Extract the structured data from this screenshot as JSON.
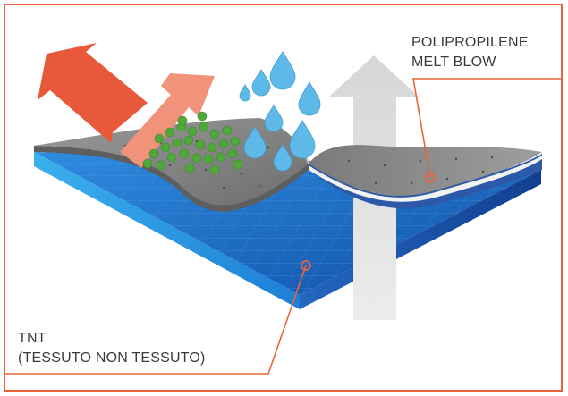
{
  "labels": {
    "polypropylene": {
      "line1": "POLIPROPILENE",
      "line2": "MELT BLOW"
    },
    "tnt": {
      "line1": "TNT",
      "line2": "(TESSUTO NON TESSUTO)"
    }
  },
  "colors": {
    "frame": "#e8643c",
    "leader": "#e8643c",
    "top_layer": "#8f8f8f",
    "blue_layer": "#1f6fc0",
    "outward_arrow": "#e8583a",
    "inward_arrow": "#f0937a",
    "vapor_arrow": "#e3e3e3",
    "particles": "#4fa83a",
    "droplets": "#5fb9e8"
  },
  "icons": [
    "outward-arrow-icon",
    "inward-arrow-icon",
    "vapor-arrow-icon",
    "particle-icon",
    "water-droplet-icon"
  ]
}
